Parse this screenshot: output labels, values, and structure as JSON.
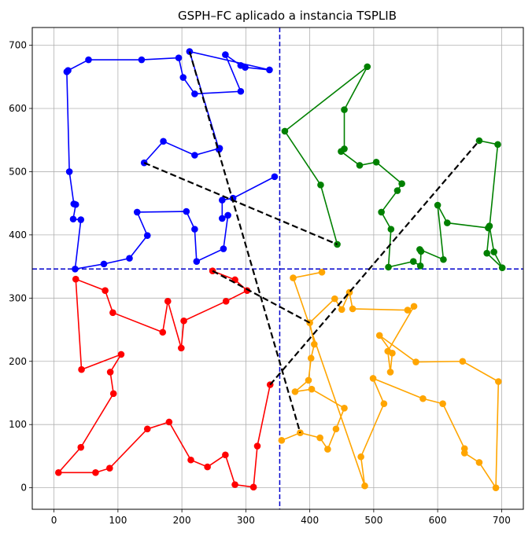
{
  "chart_data": {
    "type": "scatter",
    "title": "GSPH–FC aplicado a instancia TSPLIB",
    "xlabel": "",
    "ylabel": "",
    "xlim": [
      -34,
      734
    ],
    "ylim": [
      -34,
      728
    ],
    "xticks": [
      0,
      100,
      200,
      300,
      400,
      500,
      600,
      700
    ],
    "yticks": [
      0,
      100,
      200,
      300,
      400,
      500,
      600,
      700
    ],
    "grid": true,
    "dividers": {
      "x": 353,
      "y": 346,
      "color": "#0000cc"
    },
    "series": [
      {
        "color": "#0000ff",
        "points": [
          [
            345,
            492
          ],
          [
            280,
            458
          ],
          [
            263,
            455
          ],
          [
            263,
            426
          ],
          [
            272,
            431
          ],
          [
            265,
            378
          ],
          [
            223,
            358
          ],
          [
            220,
            409
          ],
          [
            207,
            437
          ],
          [
            130,
            436
          ],
          [
            146,
            399
          ],
          [
            118,
            363
          ],
          [
            78,
            354
          ],
          [
            33,
            346
          ],
          [
            42,
            424
          ],
          [
            30,
            425
          ],
          [
            34,
            448
          ],
          [
            31,
            449
          ],
          [
            24,
            500
          ],
          [
            20,
            658
          ],
          [
            22,
            660
          ],
          [
            54,
            677
          ],
          [
            137,
            677
          ],
          [
            195,
            680
          ],
          [
            202,
            649
          ],
          [
            220,
            623
          ],
          [
            292,
            627
          ],
          [
            268,
            685
          ],
          [
            292,
            668
          ],
          [
            299,
            665
          ],
          [
            337,
            661
          ],
          [
            212,
            690
          ],
          [
            258,
            535
          ],
          [
            259,
            537
          ],
          [
            220,
            526
          ],
          [
            171,
            548
          ],
          [
            141,
            514
          ]
        ]
      },
      {
        "color": "#008000",
        "points": [
          [
            443,
            385
          ],
          [
            417,
            479
          ],
          [
            361,
            564
          ],
          [
            490,
            666
          ],
          [
            454,
            598
          ],
          [
            454,
            536
          ],
          [
            449,
            532
          ],
          [
            478,
            510
          ],
          [
            504,
            515
          ],
          [
            544,
            481
          ],
          [
            537,
            470
          ],
          [
            512,
            436
          ],
          [
            527,
            409
          ],
          [
            523,
            349
          ],
          [
            562,
            358
          ],
          [
            573,
            351
          ],
          [
            574,
            374
          ],
          [
            572,
            377
          ],
          [
            609,
            361
          ],
          [
            600,
            447
          ],
          [
            615,
            419
          ],
          [
            679,
            411
          ],
          [
            681,
            414
          ],
          [
            688,
            373
          ],
          [
            701,
            348
          ],
          [
            677,
            371
          ],
          [
            694,
            543
          ],
          [
            665,
            549
          ]
        ]
      },
      {
        "color": "#ff0000",
        "points": [
          [
            248,
            343
          ],
          [
            283,
            329
          ],
          [
            302,
            312
          ],
          [
            269,
            295
          ],
          [
            203,
            264
          ],
          [
            199,
            221
          ],
          [
            178,
            295
          ],
          [
            170,
            246
          ],
          [
            92,
            277
          ],
          [
            80,
            312
          ],
          [
            34,
            330
          ],
          [
            43,
            187
          ],
          [
            105,
            211
          ],
          [
            88,
            183
          ],
          [
            93,
            149
          ],
          [
            42,
            64
          ],
          [
            7,
            24
          ],
          [
            65,
            24
          ],
          [
            87,
            31
          ],
          [
            146,
            93
          ],
          [
            180,
            104
          ],
          [
            214,
            44
          ],
          [
            240,
            33
          ],
          [
            268,
            52
          ],
          [
            283,
            5
          ],
          [
            312,
            1
          ],
          [
            318,
            66
          ],
          [
            338,
            163
          ]
        ]
      },
      {
        "color": "#ffa500",
        "points": [
          [
            356,
            75
          ],
          [
            385,
            87
          ],
          [
            416,
            79
          ],
          [
            428,
            61
          ],
          [
            441,
            93
          ],
          [
            454,
            126
          ],
          [
            403,
            156
          ],
          [
            377,
            152
          ],
          [
            398,
            170
          ],
          [
            402,
            205
          ],
          [
            407,
            227
          ],
          [
            400,
            261
          ],
          [
            439,
            299
          ],
          [
            450,
            282
          ],
          [
            462,
            309
          ],
          [
            467,
            283
          ],
          [
            553,
            281
          ],
          [
            563,
            287
          ],
          [
            522,
            216
          ],
          [
            526,
            183
          ],
          [
            529,
            213
          ],
          [
            509,
            241
          ],
          [
            566,
            199
          ],
          [
            639,
            200
          ],
          [
            695,
            168
          ],
          [
            691,
            0
          ],
          [
            665,
            40
          ],
          [
            642,
            55
          ],
          [
            642,
            62
          ],
          [
            608,
            133
          ],
          [
            577,
            141
          ],
          [
            499,
            173
          ],
          [
            516,
            133
          ],
          [
            480,
            49
          ],
          [
            486,
            3
          ],
          [
            374,
            332
          ],
          [
            419,
            341
          ]
        ]
      }
    ],
    "connectors": {
      "color": "#000000",
      "style": "dashed",
      "segments": [
        [
          [
            141,
            514
          ],
          [
            443,
            385
          ]
        ],
        [
          [
            212,
            690
          ],
          [
            385,
            87
          ]
        ],
        [
          [
            248,
            343
          ],
          [
            400,
            261
          ]
        ],
        [
          [
            338,
            163
          ],
          [
            665,
            549
          ]
        ]
      ]
    }
  }
}
